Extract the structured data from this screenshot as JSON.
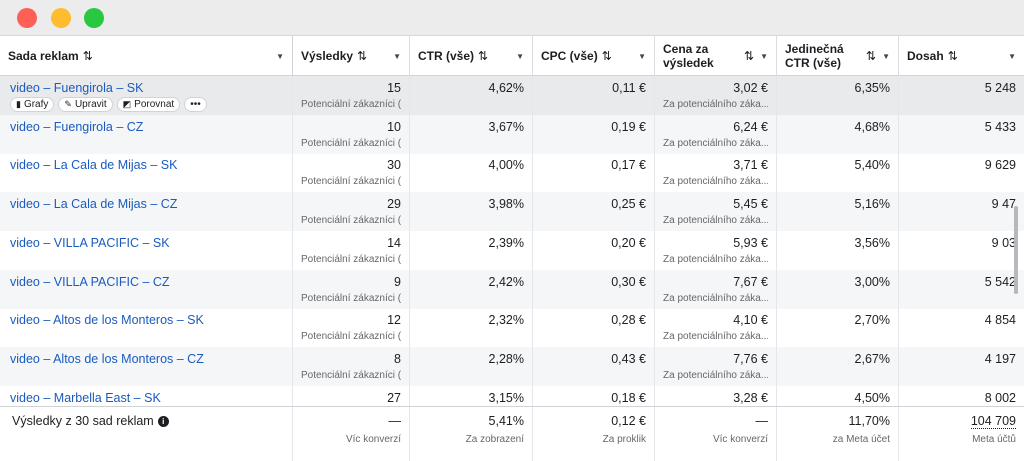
{
  "columns": [
    {
      "label": "Sada reklam"
    },
    {
      "label": "Výsledky"
    },
    {
      "label": "CTR (vše)"
    },
    {
      "label": "CPC (vše)"
    },
    {
      "label": "Cena za výsledek"
    },
    {
      "label": "Jedinečná CTR (vše)"
    },
    {
      "label": "Dosah"
    }
  ],
  "row_actions": {
    "charts": "Grafy",
    "edit": "Upravit",
    "compare": "Porovnat",
    "more": "•••"
  },
  "rows": [
    {
      "name": "video – Fuengirola – SK",
      "results": "15",
      "results_sub": "Potenciální zákazníci (...",
      "ctr": "4,62%",
      "cpc": "0,11 €",
      "cost": "3,02 €",
      "cost_sub": "Za potenciálního záka...",
      "uctr": "6,35%",
      "reach": "5 248"
    },
    {
      "name": "video – Fuengirola – CZ",
      "results": "10",
      "results_sub": "Potenciální zákazníci (...",
      "ctr": "3,67%",
      "cpc": "0,19 €",
      "cost": "6,24 €",
      "cost_sub": "Za potenciálního záka...",
      "uctr": "4,68%",
      "reach": "5 433"
    },
    {
      "name": "video – La Cala de Mijas – SK",
      "results": "30",
      "results_sub": "Potenciální zákazníci (...",
      "ctr": "4,00%",
      "cpc": "0,17 €",
      "cost": "3,71 €",
      "cost_sub": "Za potenciálního záka...",
      "uctr": "5,40%",
      "reach": "9 629"
    },
    {
      "name": "video – La Cala de Mijas – CZ",
      "results": "29",
      "results_sub": "Potenciální zákazníci (...",
      "ctr": "3,98%",
      "cpc": "0,25 €",
      "cost": "5,45 €",
      "cost_sub": "Za potenciálního záka...",
      "uctr": "5,16%",
      "reach": "9 47"
    },
    {
      "name": "video – VILLA PACIFIC – SK",
      "results": "14",
      "results_sub": "Potenciální zákazníci (...",
      "ctr": "2,39%",
      "cpc": "0,20 €",
      "cost": "5,93 €",
      "cost_sub": "Za potenciálního záka...",
      "uctr": "3,56%",
      "reach": "9 03"
    },
    {
      "name": "video – VILLA PACIFIC – CZ",
      "results": "9",
      "results_sub": "Potenciální zákazníci (...",
      "ctr": "2,42%",
      "cpc": "0,30 €",
      "cost": "7,67 €",
      "cost_sub": "Za potenciálního záka...",
      "uctr": "3,00%",
      "reach": "5 542"
    },
    {
      "name": "video – Altos de los Monteros – SK",
      "results": "12",
      "results_sub": "Potenciální zákazníci (...",
      "ctr": "2,32%",
      "cpc": "0,28 €",
      "cost": "4,10 €",
      "cost_sub": "Za potenciálního záka...",
      "uctr": "2,70%",
      "reach": "4 854"
    },
    {
      "name": "video – Altos de los Monteros – CZ",
      "results": "8",
      "results_sub": "Potenciální zákazníci (...",
      "ctr": "2,28%",
      "cpc": "0,43 €",
      "cost": "7,76 €",
      "cost_sub": "Za potenciálního záka...",
      "uctr": "2,67%",
      "reach": "4 197"
    },
    {
      "name": "video – Marbella East – SK",
      "results": "27",
      "results_sub": "",
      "ctr": "3,15%",
      "cpc": "0,18 €",
      "cost": "3,28 €",
      "cost_sub": "",
      "uctr": "4,50%",
      "reach": "8 002"
    }
  ],
  "footer": {
    "title": "Výsledky z 30 sad reklam",
    "results": "—",
    "results_sub": "Víc konverzí",
    "ctr": "5,41%",
    "ctr_sub": "Za zobrazení",
    "cpc": "0,12 €",
    "cpc_sub": "Za proklik",
    "cost": "—",
    "cost_sub": "Víc konverzí",
    "uctr": "11,70%",
    "uctr_sub": "za Meta účet",
    "reach": "104 709",
    "reach_sub": "Meta účtů"
  }
}
